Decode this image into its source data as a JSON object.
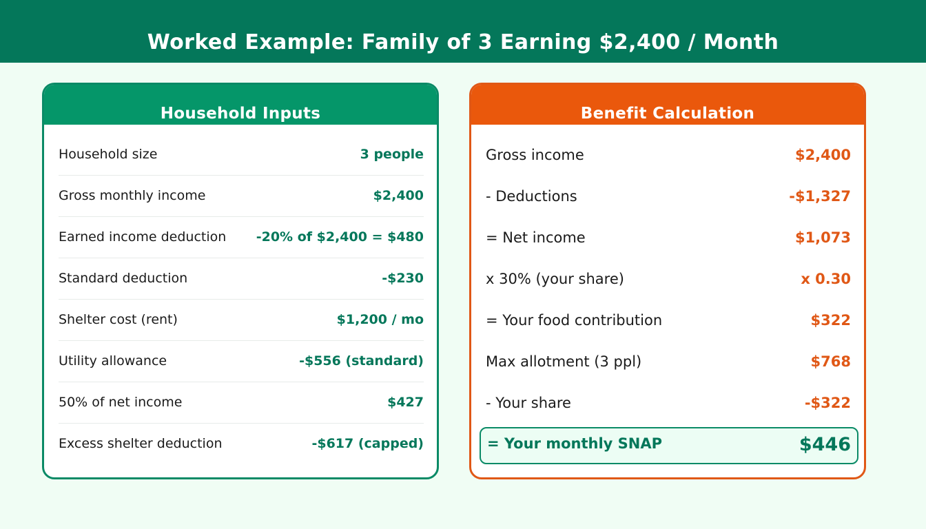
{
  "header": {
    "title": "Worked Example: Family of 3 Earning $2,400 / Month"
  },
  "household_inputs": {
    "title": "Household Inputs",
    "rows": [
      {
        "label": "Household size",
        "value": "3 people"
      },
      {
        "label": "Gross monthly income",
        "value": "$2,400"
      },
      {
        "label": "Earned income deduction",
        "value": "-20% of $2,400 = $480"
      },
      {
        "label": "Standard deduction",
        "value": "-$230"
      },
      {
        "label": "Shelter cost (rent)",
        "value": "$1,200 / mo"
      },
      {
        "label": "Utility allowance",
        "value": "-$556 (standard)"
      },
      {
        "label": "50% of net income",
        "value": "$427"
      },
      {
        "label": "Excess shelter deduction",
        "value": "-$617 (capped)"
      }
    ]
  },
  "benefit_calculation": {
    "title": "Benefit Calculation",
    "rows": [
      {
        "label": "Gross income",
        "value": "$2,400"
      },
      {
        "label": "- Deductions",
        "value": "-$1,327"
      },
      {
        "label": "= Net income",
        "value": "$1,073"
      },
      {
        "label": "x 30% (your share)",
        "value": "x 0.30"
      },
      {
        "label": "= Your food contribution",
        "value": "$322"
      },
      {
        "label": "Max allotment (3 ppl)",
        "value": "$768"
      },
      {
        "label": "- Your share",
        "value": "-$322"
      }
    ],
    "total": {
      "label": "= Your monthly SNAP",
      "value": "$446"
    }
  },
  "colors": {
    "background": "#f0fdf4",
    "header": "#04775a",
    "green_accent": "#059669",
    "orange_accent": "#ea580c"
  }
}
